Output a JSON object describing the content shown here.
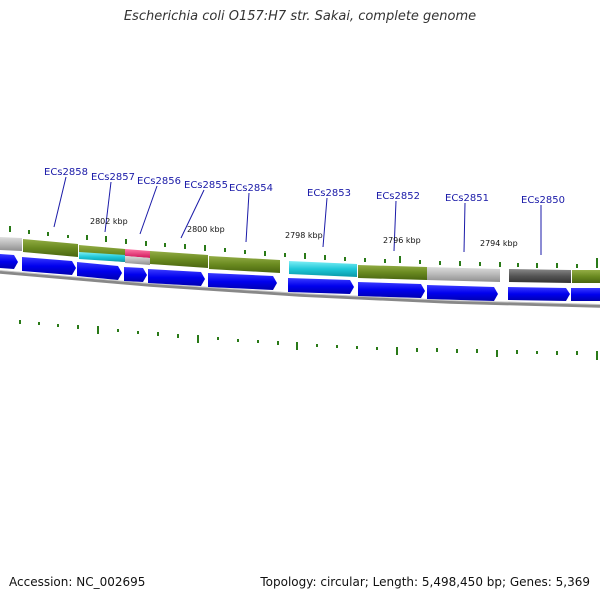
{
  "title": "Escherichia coli O157:H7 str. Sakai, complete genome",
  "footer": {
    "accession": "Accession: NC_002695",
    "summary": "Topology: circular; Length: 5,498,450 bp; Genes: 5,369"
  },
  "colors": {
    "forward_cds": "#0000ee",
    "feature_green": "#6a8a20",
    "feature_cyan": "#1fc8d8",
    "feature_pink": "#f0337a",
    "feature_gray": "#b8b8b8",
    "feature_dark": "#555555",
    "backbone": "#888888",
    "gc_ticks": "#2a7a18",
    "label": "#1a1aa8"
  },
  "gene_labels": [
    "ECs2858",
    "ECs2857",
    "ECs2856",
    "ECs2855",
    "ECs2854",
    "ECs2853",
    "ECs2852",
    "ECs2851",
    "ECs2850"
  ],
  "kbp_labels": [
    "2802 kbp",
    "2800 kbp",
    "2798 kbp",
    "2796 kbp",
    "2794 kbp"
  ]
}
